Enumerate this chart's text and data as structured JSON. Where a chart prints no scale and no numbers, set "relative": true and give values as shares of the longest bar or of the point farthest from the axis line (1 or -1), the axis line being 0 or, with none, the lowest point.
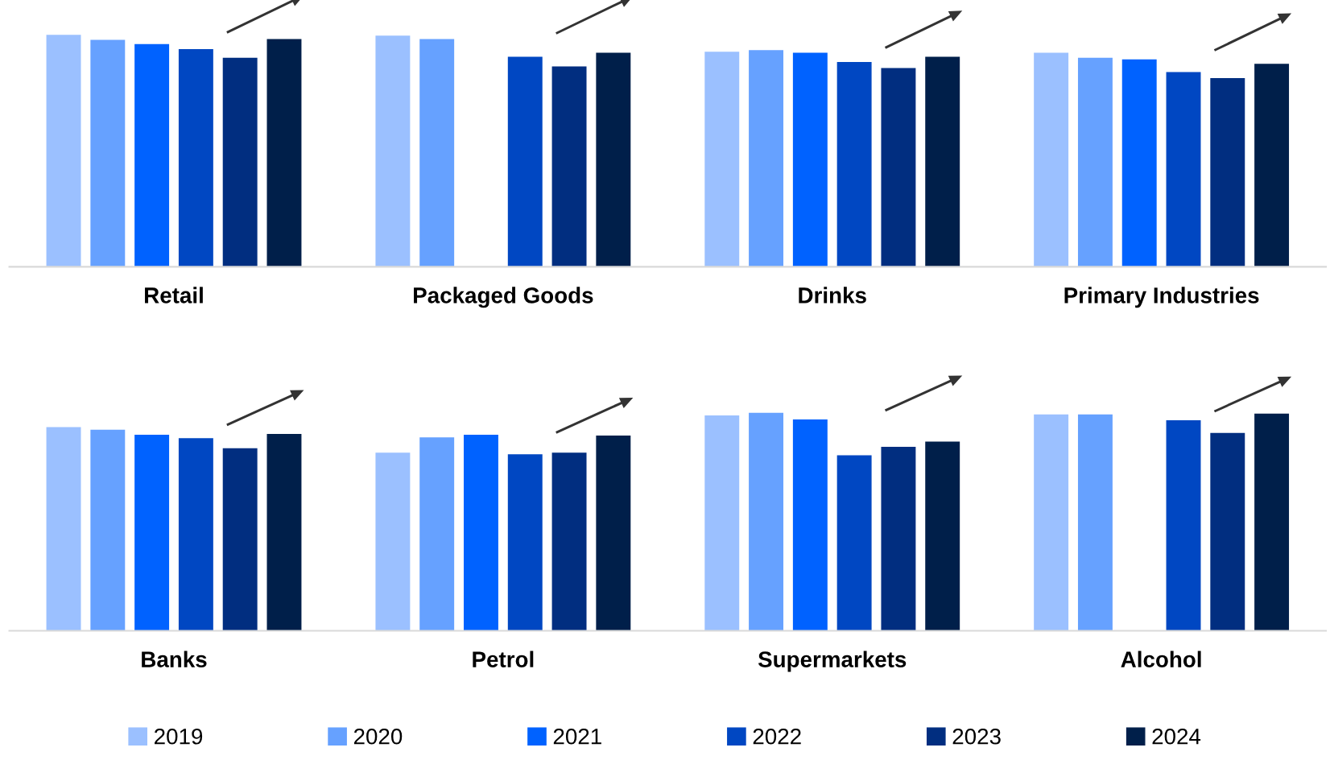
{
  "chart_data": [
    {
      "type": "bar",
      "relative": true,
      "tick_labels": "x",
      "categories": [
        "Retail",
        "Packaged Goods",
        "Drinks",
        "Primary Industries"
      ],
      "series": [
        {
          "color": "#9bc0ff",
          "values": [
            1.0,
            0.996,
            0.927,
            0.923
          ]
        },
        {
          "color": "#66a1ff",
          "values": [
            0.978,
            0.982,
            0.934,
            0.901
          ]
        },
        {
          "color": "#0062ff",
          "values": [
            0.96,
            null,
            0.923,
            0.894
          ]
        },
        {
          "color": "#0047c2",
          "values": [
            0.938,
            0.905,
            0.883,
            0.839
          ]
        },
        {
          "color": "#012e80",
          "values": [
            0.901,
            0.864,
            0.857,
            0.813
          ]
        },
        {
          "color": "#001f4a",
          "values": [
            0.982,
            0.923,
            0.905,
            0.875
          ]
        }
      ]
    },
    {
      "type": "bar",
      "relative": true,
      "tick_labels": "x",
      "legend": "bottom",
      "categories": [
        "Banks",
        "Petrol",
        "Supermarkets",
        "Alcohol"
      ],
      "series": [
        {
          "name": "2019",
          "color": "#9bc0ff",
          "values": [
            0.934,
            0.817,
            0.988,
            0.992
          ]
        },
        {
          "name": "2020",
          "color": "#66a1ff",
          "values": [
            0.922,
            0.887,
            1.0,
            0.992
          ]
        },
        {
          "name": "2021",
          "color": "#0062ff",
          "values": [
            0.899,
            0.899,
            0.969,
            null
          ]
        },
        {
          "name": "2022",
          "color": "#0047c2",
          "values": [
            0.883,
            0.809,
            0.805,
            0.965
          ]
        },
        {
          "name": "2023",
          "color": "#012e80",
          "values": [
            0.837,
            0.817,
            0.844,
            0.907
          ]
        },
        {
          "name": "2024",
          "color": "#001f4a",
          "values": [
            0.903,
            0.895,
            0.868,
            0.996
          ]
        }
      ]
    }
  ]
}
